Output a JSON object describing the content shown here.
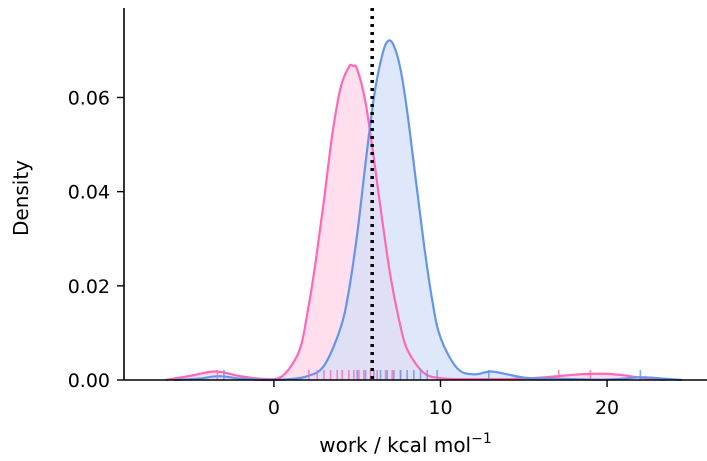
{
  "chart_data": {
    "type": "area",
    "title": "",
    "xlabel": "work / kcal mol",
    "xlabel_superscript": "−1",
    "ylabel": "Density",
    "xlim": [
      -9,
      26
    ],
    "ylim": [
      0,
      0.079
    ],
    "x_ticks": [
      0,
      10,
      20
    ],
    "x_tick_labels": [
      "0",
      "10",
      "20"
    ],
    "y_ticks": [
      0.0,
      0.02,
      0.04,
      0.06
    ],
    "y_tick_labels": [
      "0.00",
      "0.02",
      "0.04",
      "0.06"
    ],
    "grid": false,
    "legend": "none",
    "vertical_line": {
      "x": 5.9,
      "style": "dotted",
      "color": "#000000"
    },
    "series": [
      {
        "color": "#ff69b4",
        "fill": "#ffd3e8",
        "x": [
          -6.5,
          -5,
          -3.5,
          -2,
          -0.5,
          0.5,
          1.5,
          2,
          2.5,
          3,
          3.5,
          4,
          4.5,
          4.75,
          5,
          5.5,
          6,
          6.5,
          7,
          7.5,
          8,
          9,
          10,
          11,
          12,
          13,
          14,
          15,
          16,
          17,
          18,
          19,
          20,
          21,
          22,
          23.5
        ],
        "y": [
          0.0,
          0.0009,
          0.0018,
          0.0008,
          0.0002,
          0.0008,
          0.006,
          0.014,
          0.025,
          0.038,
          0.052,
          0.062,
          0.0665,
          0.0667,
          0.066,
          0.059,
          0.047,
          0.034,
          0.022,
          0.013,
          0.0065,
          0.0015,
          0.0004,
          0.0002,
          0.0002,
          0.0002,
          0.0002,
          0.0003,
          0.0005,
          0.0008,
          0.0011,
          0.0013,
          0.0013,
          0.001,
          0.0005,
          0.0
        ],
        "rug": [
          2.1,
          2.6,
          3.0,
          3.4,
          3.8,
          4.1,
          4.5,
          4.8,
          5.1,
          5.4,
          5.8,
          6.2,
          6.7,
          7.1,
          7.6,
          -3.4,
          17.1,
          19.0
        ]
      },
      {
        "color": "#6495ed",
        "fill": "#d4e0f8",
        "x": [
          -6,
          -4.5,
          -3.3,
          -2,
          -0.5,
          1,
          2,
          3,
          4,
          4.5,
          5,
          5.5,
          6,
          6.5,
          6.85,
          7.2,
          7.6,
          8,
          8.5,
          9,
          9.5,
          10,
          11,
          12,
          13,
          14,
          15,
          16,
          17,
          18,
          19,
          20,
          21,
          22,
          23,
          24.5
        ],
        "y": [
          0.0,
          0.0003,
          0.0008,
          0.0003,
          0.0,
          0.0002,
          0.0008,
          0.003,
          0.011,
          0.019,
          0.031,
          0.046,
          0.06,
          0.069,
          0.072,
          0.071,
          0.066,
          0.057,
          0.043,
          0.029,
          0.017,
          0.009,
          0.0025,
          0.0012,
          0.0018,
          0.0012,
          0.0005,
          0.0003,
          0.0003,
          0.0002,
          0.0001,
          0.0001,
          0.0003,
          0.0006,
          0.0004,
          0.0
        ],
        "rug": [
          5.0,
          5.5,
          6.0,
          6.4,
          6.8,
          7.2,
          7.6,
          8.0,
          8.4,
          8.8,
          9.2,
          9.8,
          -3.0,
          12.9,
          22.0
        ]
      }
    ]
  }
}
